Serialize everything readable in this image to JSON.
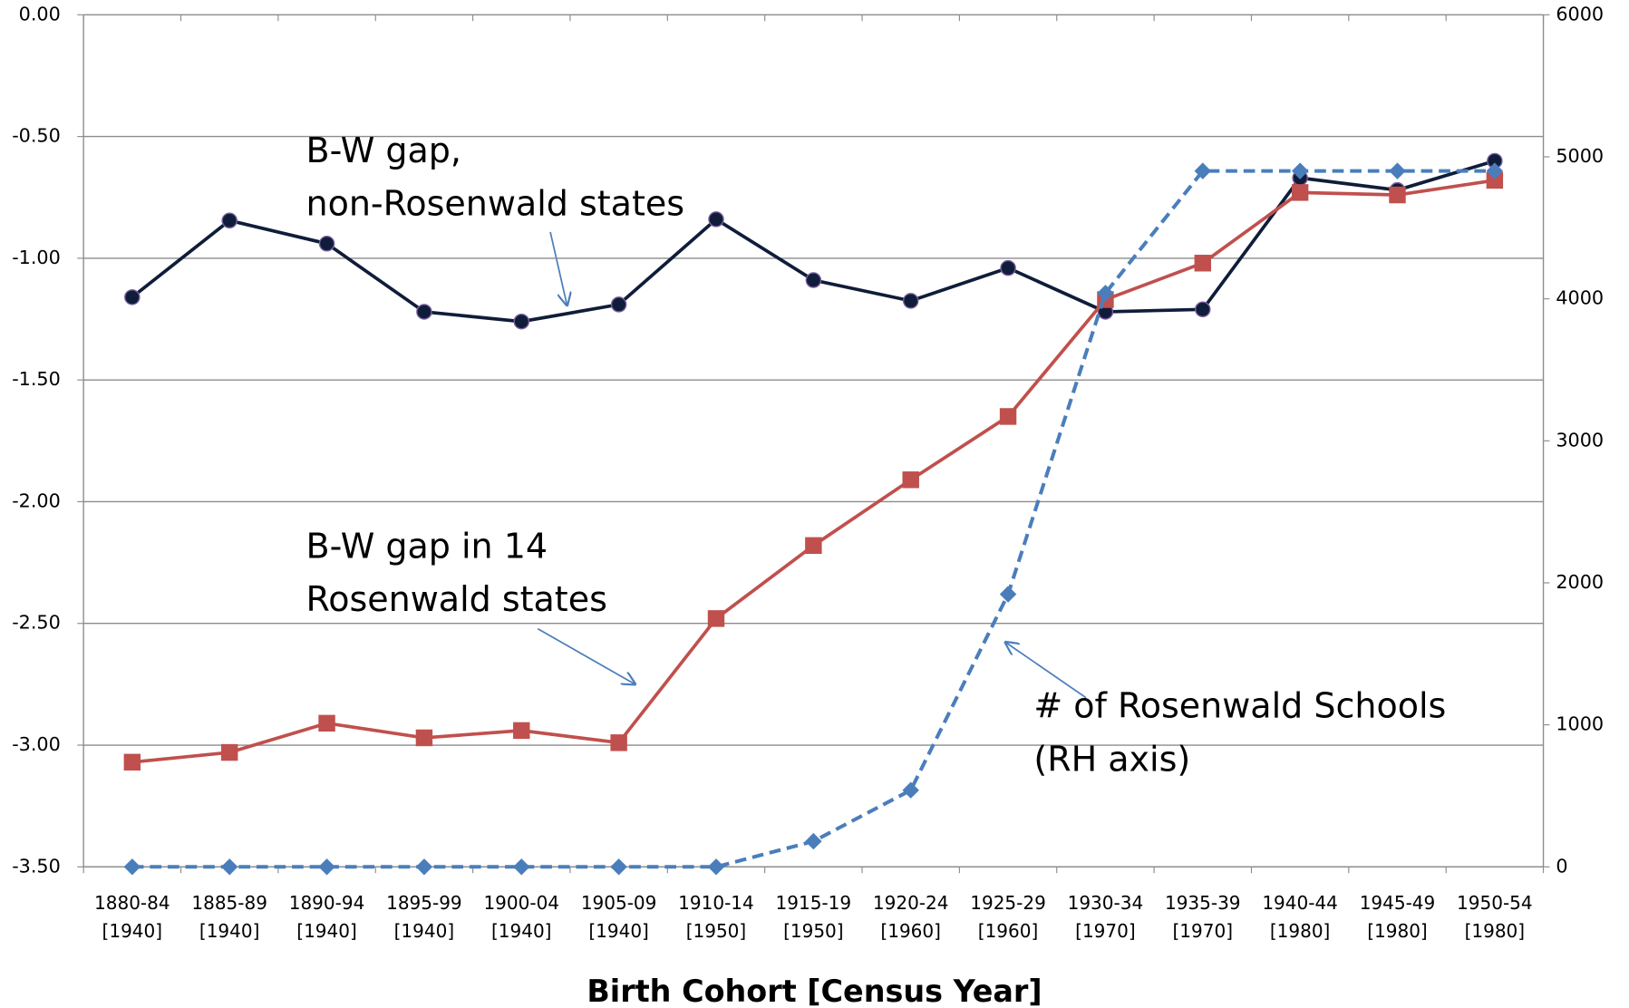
{
  "chart_data": {
    "type": "line",
    "x_label": "Birth Cohort [Census Year]",
    "categories": [
      "1880-84 [1940]",
      "1885-89 [1940]",
      "1890-94 [1940]",
      "1895-99 [1940]",
      "1900-04 [1940]",
      "1905-09 [1940]",
      "1910-14 [1950]",
      "1915-19 [1950]",
      "1920-24 [1960]",
      "1925-29 [1960]",
      "1930-34 [1970]",
      "1935-39 [1970]",
      "1940-44 [1980]",
      "1945-49 [1980]",
      "1950-54 [1980]"
    ],
    "ylim": [
      -3.5,
      0
    ],
    "yticks": [
      {
        "value": -3.5,
        "label": "-3.50"
      },
      {
        "value": -3,
        "label": "-3.00"
      },
      {
        "value": -2.5,
        "label": "-2.50"
      },
      {
        "value": -2,
        "label": "-2.00"
      },
      {
        "value": -1.5,
        "label": "-1.50"
      },
      {
        "value": -1,
        "label": "-1.00"
      },
      {
        "value": -0.5,
        "label": "-0.50"
      },
      {
        "value": 0,
        "label": "0.00"
      }
    ],
    "y2lim": [
      0,
      6000
    ],
    "y2ticks": [
      0,
      1000,
      2000,
      3000,
      4000,
      5000,
      6000
    ],
    "grid": true,
    "series": [
      {
        "color": "#0f1d3a",
        "marker": "circle",
        "line_style": "solid",
        "values": [
          -1.16,
          -0.845,
          -0.94,
          -1.22,
          -1.26,
          -1.19,
          -0.84,
          -1.09,
          -1.175,
          -1.04,
          -1.22,
          -1.21,
          -0.67,
          -0.72,
          -0.6
        ]
      },
      {
        "color": "#c0504d",
        "marker": "square",
        "line_style": "solid",
        "values": [
          -3.07,
          -3.03,
          -2.91,
          -2.97,
          -2.94,
          -2.99,
          -2.48,
          -2.18,
          -1.91,
          -1.65,
          -1.17,
          -1.02,
          -0.73,
          -0.74,
          -0.68
        ]
      },
      {
        "color": "#4a7ebb",
        "marker": "diamond",
        "line_style": "dashed",
        "axis": "y2",
        "values": [
          0,
          0,
          0,
          0,
          0,
          0,
          0,
          180,
          540,
          1920,
          4040,
          4900,
          4900,
          4900,
          4900
        ]
      }
    ],
    "annotations": [
      {
        "lines": [
          "B-W gap,",
          "non-Rosenwald states"
        ]
      },
      {
        "lines": [
          "B-W gap in 14",
          "Rosenwald states"
        ]
      },
      {
        "lines": [
          "# of Rosenwald Schools",
          "(RH axis)"
        ]
      }
    ]
  }
}
